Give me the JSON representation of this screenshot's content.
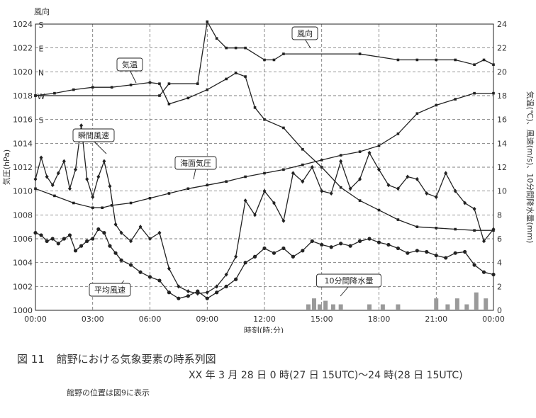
{
  "chart_data": {
    "type": "line",
    "xlabel": "時刻(時:分)",
    "x_ticks": [
      "00:00",
      "03:00",
      "06:00",
      "09:00",
      "12:00",
      "15:00",
      "18:00",
      "21:00",
      "00:00"
    ],
    "x_range_hours": [
      0,
      24
    ],
    "left_axis": {
      "label": "気圧(hPa)",
      "range": [
        1000,
        1024
      ],
      "ticks": [
        "1000",
        "1002",
        "1004",
        "1006",
        "1008",
        "1010",
        "1012",
        "1014",
        "1016",
        "1018",
        "1020",
        "1022",
        "1024"
      ]
    },
    "right_axis": {
      "label": "気温(℃)、風速(m/s)、10分間降水量(mm)",
      "range": [
        0,
        24
      ],
      "ticks": [
        "0",
        "2",
        "4",
        "6",
        "8",
        "10",
        "12",
        "14",
        "16",
        "18",
        "20",
        "22",
        "24"
      ]
    },
    "direction_axis": {
      "label": "風向",
      "ticks": [
        "S",
        "E",
        "N",
        "W",
        "S"
      ],
      "tick_values": [
        1024,
        1022,
        1020,
        1018,
        1016
      ]
    },
    "grid": true,
    "series": [
      {
        "name": "海面気圧",
        "axis": "left",
        "color": "#222222",
        "x": [
          0,
          1,
          2,
          3,
          3.5,
          4,
          5,
          6,
          7,
          8,
          9,
          10,
          11,
          12,
          13,
          14,
          15,
          16,
          17,
          18,
          19,
          20,
          21,
          22,
          23,
          24
        ],
        "values": [
          1010.2,
          1009.6,
          1009.0,
          1008.6,
          1008.6,
          1008.8,
          1009.0,
          1009.4,
          1009.8,
          1010.2,
          1010.5,
          1010.8,
          1011.2,
          1011.5,
          1011.8,
          1012.2,
          1012.6,
          1013.0,
          1013.3,
          1013.8,
          1014.8,
          1016.5,
          1017.2,
          1017.7,
          1018.2,
          1018.2
        ]
      },
      {
        "name": "気温",
        "axis": "right",
        "color": "#222222",
        "x": [
          0,
          1,
          2,
          3,
          4,
          5,
          6,
          6.5,
          7,
          8,
          9,
          10,
          10.5,
          11,
          11.5,
          12,
          13,
          14,
          15,
          16,
          17,
          18,
          19,
          20,
          21,
          22,
          23,
          24
        ],
        "values": [
          18.0,
          18.2,
          18.5,
          18.7,
          18.7,
          18.9,
          19.1,
          19.0,
          17.3,
          17.8,
          18.5,
          19.4,
          19.9,
          19.6,
          17.0,
          16.0,
          15.3,
          13.5,
          12.0,
          10.3,
          9.2,
          8.4,
          7.6,
          7.0,
          6.9,
          6.8,
          6.7,
          6.7
        ]
      },
      {
        "name": "風向",
        "axis": "direction",
        "color": "#222222",
        "x": [
          0,
          6.5,
          7,
          8.5,
          9,
          9.5,
          10,
          10.5,
          11,
          12,
          12.5,
          13,
          17,
          19,
          20,
          21,
          22,
          23,
          23.5,
          24
        ],
        "values": [
          1018.0,
          1018.0,
          1019.0,
          1019.0,
          1024.2,
          1022.8,
          1022.0,
          1022.0,
          1022.0,
          1021.0,
          1021.0,
          1021.5,
          1021.5,
          1021.0,
          1021.0,
          1021.0,
          1021.0,
          1020.6,
          1021.0,
          1020.6
        ]
      },
      {
        "name": "瞬間風速",
        "axis": "right",
        "color": "#222222",
        "x": [
          0,
          0.3,
          0.6,
          0.9,
          1.2,
          1.5,
          1.8,
          2.1,
          2.4,
          2.7,
          3.0,
          3.3,
          3.6,
          3.9,
          4.2,
          4.5,
          5.0,
          5.5,
          6.0,
          6.5,
          7.0,
          7.5,
          8.0,
          8.5,
          9.0,
          9.5,
          10.0,
          10.5,
          11.0,
          11.5,
          12.0,
          12.5,
          13.0,
          13.5,
          14.0,
          14.5,
          15.0,
          15.5,
          16.0,
          16.5,
          17.0,
          17.5,
          18.0,
          18.5,
          19.0,
          19.5,
          20.0,
          20.5,
          21.0,
          21.5,
          22.0,
          22.5,
          23.0,
          23.5,
          24.0
        ],
        "values": [
          11.0,
          12.8,
          11.2,
          10.5,
          11.5,
          12.5,
          10.2,
          11.8,
          15.5,
          11.0,
          9.5,
          11.2,
          12.5,
          10.4,
          7.2,
          6.5,
          5.8,
          7.0,
          6.0,
          6.5,
          3.5,
          2.0,
          1.6,
          1.4,
          1.5,
          2.0,
          3.0,
          4.5,
          9.2,
          8.0,
          10.0,
          9.0,
          7.5,
          11.5,
          10.8,
          12.0,
          10.0,
          9.8,
          12.5,
          10.2,
          11.0,
          13.2,
          11.8,
          10.5,
          10.2,
          11.2,
          11.0,
          9.8,
          9.5,
          11.5,
          10.0,
          9.0,
          8.5,
          5.8,
          6.8
        ]
      },
      {
        "name": "平均風速",
        "axis": "right",
        "color": "#222222",
        "x": [
          0,
          0.3,
          0.6,
          0.9,
          1.2,
          1.5,
          1.8,
          2.1,
          2.4,
          2.7,
          3.0,
          3.3,
          3.6,
          3.9,
          4.2,
          4.5,
          5.0,
          5.5,
          6.0,
          6.5,
          7.0,
          7.5,
          8.0,
          8.5,
          9.0,
          9.5,
          10.0,
          10.5,
          11.0,
          11.5,
          12.0,
          12.5,
          13.0,
          13.5,
          14.0,
          14.5,
          15.0,
          15.5,
          16.0,
          16.5,
          17.0,
          17.5,
          18.0,
          18.5,
          19.0,
          19.5,
          20.0,
          20.5,
          21.0,
          21.5,
          22.0,
          22.5,
          23.0,
          23.5,
          24.0
        ],
        "values": [
          6.5,
          6.3,
          5.8,
          6.0,
          5.6,
          6.0,
          6.3,
          5.0,
          5.4,
          5.8,
          6.0,
          6.8,
          6.5,
          5.4,
          4.8,
          4.2,
          3.8,
          3.2,
          2.8,
          2.5,
          1.5,
          1.0,
          1.2,
          1.6,
          1.0,
          1.5,
          2.0,
          2.6,
          4.0,
          4.5,
          5.2,
          4.8,
          5.2,
          4.5,
          5.0,
          5.8,
          5.5,
          5.3,
          5.6,
          5.4,
          5.8,
          6.0,
          5.7,
          5.5,
          5.2,
          4.8,
          5.0,
          4.9,
          4.6,
          4.4,
          4.8,
          4.9,
          3.8,
          3.2,
          3.0
        ]
      },
      {
        "name": "10分間降水量",
        "axis": "right",
        "type": "bar",
        "color": "#9a9a9a",
        "x": [
          14.3,
          14.6,
          14.9,
          15.2,
          15.6,
          16.0,
          17.5,
          18.2,
          19.0,
          21.0,
          21.6,
          22.1,
          22.6,
          23.1,
          23.6
        ],
        "values": [
          0.5,
          1.0,
          0.5,
          0.8,
          0.5,
          0.5,
          0.5,
          0.5,
          0.5,
          1.0,
          0.5,
          1.0,
          0.5,
          1.5,
          1.0
        ]
      }
    ],
    "annotations": [
      "風向",
      "気温",
      "瞬間風速",
      "海面気圧",
      "平均風速",
      "10分間降水量"
    ]
  },
  "caption": {
    "figure_label": "図 11",
    "title": "館野における気象要素の時系列図",
    "subtitle": "XX 年 3 月 28 日 0 時(27 日 15UTC)〜24 時(28 日 15UTC)",
    "note": "館野の位置は図9に表示"
  }
}
